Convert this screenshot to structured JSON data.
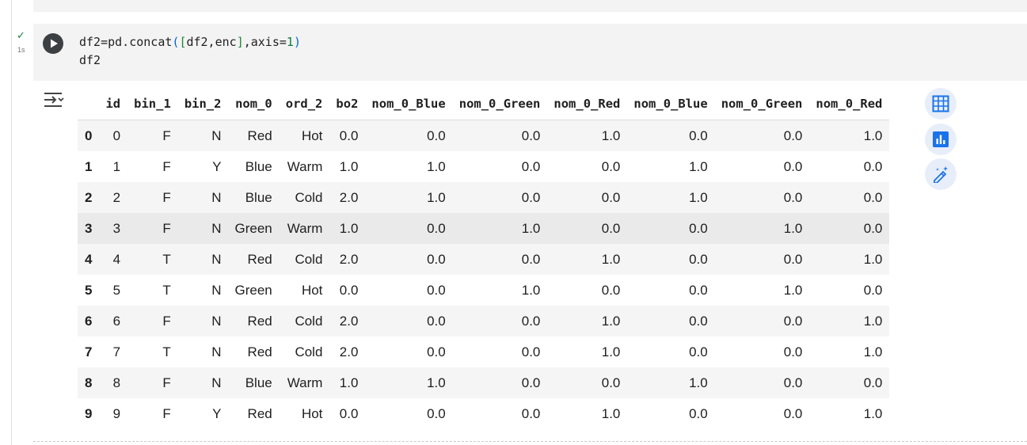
{
  "cell": {
    "exec_check": "✓",
    "exec_time": "1s",
    "code_line1": {
      "a": "df2=pd.concat",
      "b": "(",
      "c": "[",
      "d": "df2,enc",
      "e": "]",
      "f": ",axis=",
      "g": "1",
      "h": ")"
    },
    "code_line2": "df2"
  },
  "table": {
    "columns": [
      "",
      "id",
      "bin_1",
      "bin_2",
      "nom_0",
      "ord_2",
      "bo2",
      "nom_0_Blue",
      "nom_0_Green",
      "nom_0_Red",
      "nom_0_Blue",
      "nom_0_Green",
      "nom_0_Red"
    ],
    "rows": [
      [
        "0",
        "0",
        "F",
        "N",
        "Red",
        "Hot",
        "0.0",
        "0.0",
        "0.0",
        "1.0",
        "0.0",
        "0.0",
        "1.0"
      ],
      [
        "1",
        "1",
        "F",
        "Y",
        "Blue",
        "Warm",
        "1.0",
        "1.0",
        "0.0",
        "0.0",
        "1.0",
        "0.0",
        "0.0"
      ],
      [
        "2",
        "2",
        "F",
        "N",
        "Blue",
        "Cold",
        "2.0",
        "1.0",
        "0.0",
        "0.0",
        "1.0",
        "0.0",
        "0.0"
      ],
      [
        "3",
        "3",
        "F",
        "N",
        "Green",
        "Warm",
        "1.0",
        "0.0",
        "1.0",
        "0.0",
        "0.0",
        "1.0",
        "0.0"
      ],
      [
        "4",
        "4",
        "T",
        "N",
        "Red",
        "Cold",
        "2.0",
        "0.0",
        "0.0",
        "1.0",
        "0.0",
        "0.0",
        "1.0"
      ],
      [
        "5",
        "5",
        "T",
        "N",
        "Green",
        "Hot",
        "0.0",
        "0.0",
        "1.0",
        "0.0",
        "0.0",
        "1.0",
        "0.0"
      ],
      [
        "6",
        "6",
        "F",
        "N",
        "Red",
        "Cold",
        "2.0",
        "0.0",
        "0.0",
        "1.0",
        "0.0",
        "0.0",
        "1.0"
      ],
      [
        "7",
        "7",
        "T",
        "N",
        "Red",
        "Cold",
        "2.0",
        "0.0",
        "0.0",
        "1.0",
        "0.0",
        "0.0",
        "1.0"
      ],
      [
        "8",
        "8",
        "F",
        "N",
        "Blue",
        "Warm",
        "1.0",
        "1.0",
        "0.0",
        "0.0",
        "1.0",
        "0.0",
        "0.0"
      ],
      [
        "9",
        "9",
        "F",
        "Y",
        "Red",
        "Hot",
        "0.0",
        "0.0",
        "0.0",
        "1.0",
        "0.0",
        "0.0",
        "1.0"
      ]
    ],
    "hovered_row": 3
  },
  "icons": {
    "run": "play-circle-icon",
    "output_toggle": "output-options-icon",
    "side_buttons": [
      "table-view-icon",
      "chart-suggest-icon",
      "magic-edit-icon"
    ]
  },
  "colors": {
    "accent": "#1a73e8",
    "side_button_bg": "#e8eef9",
    "run_button": "#3c4043",
    "check": "#188038"
  }
}
